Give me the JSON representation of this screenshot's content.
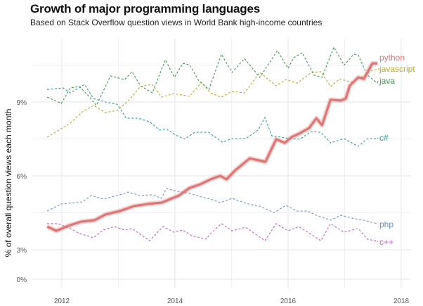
{
  "chart_data": {
    "type": "line",
    "title": "Growth of major programming languages",
    "subtitle": "Based on Stack Overflow question views in World Bank high-income countries",
    "xlabel": "",
    "ylabel": "% of overall question views each month",
    "xticks": [
      2012,
      2014,
      2016,
      2018
    ],
    "xtick_labels": [
      "2012",
      "2014",
      "2016",
      "2018"
    ],
    "yticks": [
      0,
      3,
      6,
      9
    ],
    "ytick_labels": [
      "0%",
      "3%",
      "6%",
      "9%"
    ],
    "xlim": [
      2011.5,
      2018.2
    ],
    "ylim": [
      0,
      11.5
    ],
    "grid": true,
    "legend": "direct labels at right end of lines",
    "series": [
      {
        "name": "python",
        "color": "#e07575",
        "style": "solid-thick",
        "x": [
          2011.74,
          2011.9,
          2012.15,
          2012.34,
          2012.58,
          2012.77,
          2013.02,
          2013.27,
          2013.52,
          2013.76,
          2013.89,
          2014.07,
          2014.26,
          2014.45,
          2014.63,
          2014.8,
          2014.91,
          2015.07,
          2015.32,
          2015.6,
          2015.79,
          2015.94,
          2016.06,
          2016.19,
          2016.37,
          2016.5,
          2016.6,
          2016.75,
          2016.93,
          2017.02,
          2017.09,
          2017.24,
          2017.34,
          2017.49,
          2017.58
        ],
        "y": [
          3.94,
          3.77,
          4.0,
          4.14,
          4.2,
          4.43,
          4.57,
          4.77,
          4.86,
          4.91,
          5.03,
          5.2,
          5.51,
          5.66,
          5.86,
          6.0,
          5.86,
          6.23,
          6.71,
          6.57,
          7.49,
          7.34,
          7.57,
          7.71,
          7.94,
          8.34,
          8.06,
          9.09,
          9.06,
          9.14,
          9.66,
          10.0,
          9.94,
          10.57,
          10.57
        ]
      },
      {
        "name": "javascript",
        "color": "#b8a92e",
        "style": "dashed",
        "x": [
          2011.74,
          2012.15,
          2012.36,
          2012.56,
          2012.77,
          2012.98,
          2013.18,
          2013.39,
          2013.6,
          2013.76,
          2013.98,
          2014.26,
          2014.47,
          2014.63,
          2014.82,
          2015.01,
          2015.23,
          2015.5,
          2015.79,
          2015.96,
          2016.16,
          2016.41,
          2016.58,
          2016.75,
          2016.91,
          2017.12,
          2017.33,
          2017.49,
          2017.61
        ],
        "y": [
          7.57,
          8.14,
          8.6,
          8.86,
          8.57,
          8.66,
          9.06,
          9.63,
          9.71,
          9.2,
          9.34,
          9.23,
          9.8,
          9.37,
          9.2,
          9.43,
          9.37,
          10.2,
          9.66,
          9.91,
          9.77,
          10.2,
          10.23,
          9.63,
          9.94,
          9.8,
          10.06,
          10.29,
          10.34
        ]
      },
      {
        "name": "java",
        "color": "#3f9a4f",
        "style": "dashed",
        "x": [
          2011.74,
          2011.99,
          2012.15,
          2012.31,
          2012.48,
          2012.61,
          2012.86,
          2013.11,
          2013.24,
          2013.39,
          2013.6,
          2013.83,
          2013.99,
          2014.14,
          2014.26,
          2014.42,
          2014.6,
          2014.82,
          2015.01,
          2015.23,
          2015.5,
          2015.81,
          2016.0,
          2016.1,
          2016.25,
          2016.46,
          2016.6,
          2016.81,
          2016.99,
          2017.16,
          2017.24,
          2017.4,
          2017.58
        ],
        "y": [
          9.2,
          8.94,
          9.57,
          9.63,
          9.23,
          8.86,
          10.06,
          9.91,
          10.23,
          9.66,
          9.37,
          10.71,
          10.0,
          10.57,
          10.51,
          9.86,
          9.51,
          10.94,
          10.2,
          10.77,
          10.0,
          11.09,
          10.37,
          10.8,
          11.0,
          10.09,
          10.0,
          11.23,
          10.49,
          10.94,
          10.91,
          10.09,
          9.77
        ]
      },
      {
        "name": "c#",
        "color": "#2aa198",
        "style": "dashed",
        "x": [
          2011.74,
          2012.02,
          2012.15,
          2012.4,
          2012.56,
          2012.77,
          2012.98,
          2013.14,
          2013.35,
          2013.55,
          2013.73,
          2013.85,
          2014.01,
          2014.17,
          2014.35,
          2014.6,
          2014.63,
          2014.84,
          2015.01,
          2015.25,
          2015.47,
          2015.59,
          2015.71,
          2015.88,
          2016.04,
          2016.21,
          2016.41,
          2016.58,
          2016.75,
          2016.99,
          2017.24,
          2017.4,
          2017.58
        ],
        "y": [
          9.51,
          9.57,
          9.37,
          9.71,
          9.14,
          9.0,
          8.91,
          8.34,
          8.34,
          8.2,
          7.86,
          7.91,
          7.66,
          7.49,
          7.77,
          7.77,
          7.71,
          7.37,
          7.51,
          7.51,
          7.86,
          8.37,
          7.63,
          7.57,
          7.51,
          7.49,
          7.8,
          7.77,
          7.34,
          7.51,
          7.2,
          7.51,
          7.51
        ]
      },
      {
        "name": "php",
        "color": "#6f8fcb",
        "style": "dashed",
        "x": [
          2011.74,
          2011.99,
          2012.36,
          2012.52,
          2012.73,
          2012.98,
          2013.17,
          2013.39,
          2013.6,
          2013.76,
          2013.85,
          2014.05,
          2014.26,
          2014.47,
          2014.63,
          2014.8,
          2015.01,
          2015.29,
          2015.5,
          2015.75,
          2015.96,
          2016.16,
          2016.34,
          2016.53,
          2016.75,
          2016.93,
          2017.12,
          2017.33,
          2017.53
        ],
        "y": [
          4.57,
          4.86,
          4.94,
          5.2,
          5.06,
          5.2,
          5.34,
          5.2,
          5.23,
          5.09,
          5.49,
          5.37,
          5.29,
          5.14,
          5.06,
          4.91,
          5.09,
          4.86,
          4.77,
          4.51,
          4.8,
          4.57,
          4.57,
          4.37,
          4.2,
          4.4,
          4.29,
          4.2,
          4.09
        ]
      },
      {
        "name": "c++",
        "color": "#c85ec8",
        "style": "dashed",
        "x": [
          2011.74,
          2011.93,
          2012.15,
          2012.31,
          2012.56,
          2012.73,
          2012.93,
          2013.11,
          2013.24,
          2013.55,
          2013.79,
          2013.98,
          2014.14,
          2014.3,
          2014.55,
          2014.63,
          2014.82,
          2015.01,
          2015.25,
          2015.59,
          2015.79,
          2016.0,
          2016.19,
          2016.58,
          2016.75,
          2016.99,
          2017.24,
          2017.4,
          2017.58
        ],
        "y": [
          4.06,
          4.06,
          3.86,
          3.66,
          3.49,
          3.8,
          3.94,
          3.8,
          3.86,
          3.37,
          3.94,
          3.71,
          3.8,
          3.57,
          3.43,
          3.66,
          4.06,
          3.77,
          3.91,
          3.37,
          4.06,
          3.77,
          3.94,
          3.37,
          4.06,
          3.71,
          3.86,
          3.43,
          3.34
        ]
      }
    ]
  }
}
